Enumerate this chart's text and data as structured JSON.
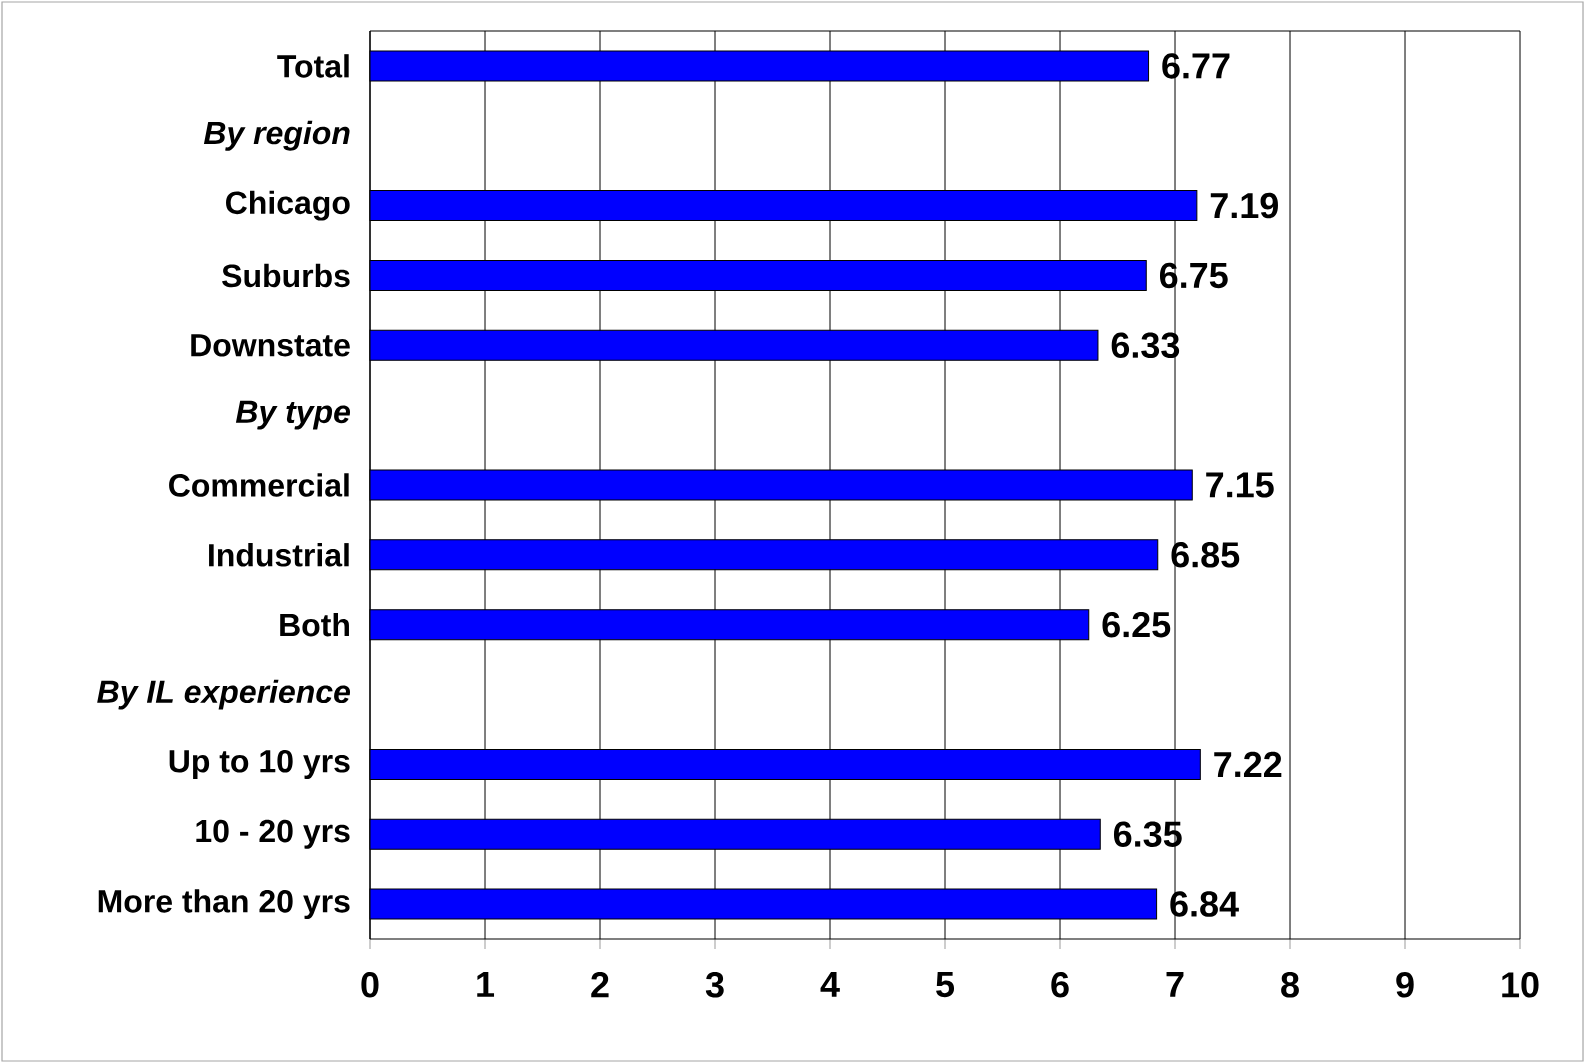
{
  "chart_data": {
    "type": "bar",
    "orientation": "horizontal",
    "categories": [
      "Total",
      "*By region*",
      "Chicago",
      "Suburbs",
      "Downstate",
      "*By type*",
      "Commercial",
      "Industrial",
      "Both",
      "*By IL experience*",
      "Up to 10 yrs",
      "10 - 20 yrs",
      "More than 20 yrs"
    ],
    "values": [
      6.77,
      null,
      7.19,
      6.75,
      6.33,
      null,
      7.15,
      6.85,
      6.25,
      null,
      7.22,
      6.35,
      6.84
    ],
    "color": "#0000ff",
    "xlim": [
      0,
      10
    ],
    "xticks": [
      0,
      1,
      2,
      3,
      4,
      5,
      6,
      7,
      8,
      9,
      10
    ],
    "grid": "x",
    "data_labels": true
  }
}
